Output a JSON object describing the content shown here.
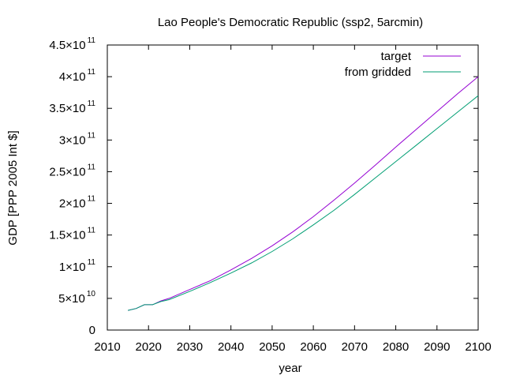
{
  "chart_data": {
    "type": "line",
    "title": "Lao People's Democratic Republic (ssp2, 5arcmin)",
    "xlabel": "year",
    "ylabel": "GDP [PPP 2005 Int $]",
    "xlim": [
      2010,
      2100
    ],
    "ylim": [
      0,
      450000000000
    ],
    "x_ticks": [
      "2010",
      "2020",
      "2030",
      "2040",
      "2050",
      "2060",
      "2070",
      "2080",
      "2090",
      "2100"
    ],
    "y_ticks": [
      {
        "value": 0,
        "mantissa": "0",
        "exp": ""
      },
      {
        "value": 50000000000,
        "mantissa": "5×10",
        "exp": "10"
      },
      {
        "value": 100000000000,
        "mantissa": "1×10",
        "exp": "11"
      },
      {
        "value": 150000000000,
        "mantissa": "1.5×10",
        "exp": "11"
      },
      {
        "value": 200000000000,
        "mantissa": "2×10",
        "exp": "11"
      },
      {
        "value": 250000000000,
        "mantissa": "2.5×10",
        "exp": "11"
      },
      {
        "value": 300000000000,
        "mantissa": "3×10",
        "exp": "11"
      },
      {
        "value": 350000000000,
        "mantissa": "3.5×10",
        "exp": "11"
      },
      {
        "value": 400000000000,
        "mantissa": "4×10",
        "exp": "11"
      },
      {
        "value": 450000000000,
        "mantissa": "4.5×10",
        "exp": "11"
      }
    ],
    "grid": false,
    "legend_position": "top-right",
    "x": [
      2015,
      2017,
      2019,
      2021,
      2023,
      2025,
      2030,
      2035,
      2040,
      2045,
      2050,
      2055,
      2060,
      2065,
      2070,
      2075,
      2080,
      2085,
      2090,
      2095,
      2100
    ],
    "series": [
      {
        "name": "target",
        "color": "#9400d3",
        "values": [
          31000000000,
          34000000000,
          40000000000,
          40000000000,
          46000000000,
          50000000000,
          64000000000,
          78000000000,
          95000000000,
          113000000000,
          133000000000,
          155000000000,
          179000000000,
          205000000000,
          232000000000,
          260000000000,
          289000000000,
          317000000000,
          345000000000,
          373000000000,
          400000000000
        ]
      },
      {
        "name": "from gridded",
        "color": "#009e73",
        "values": [
          31000000000,
          34000000000,
          40000000000,
          40000000000,
          45000000000,
          48000000000,
          61000000000,
          75000000000,
          90000000000,
          106000000000,
          124000000000,
          144000000000,
          166000000000,
          189000000000,
          214000000000,
          240000000000,
          266000000000,
          292000000000,
          318000000000,
          344000000000,
          370000000000
        ]
      }
    ]
  }
}
